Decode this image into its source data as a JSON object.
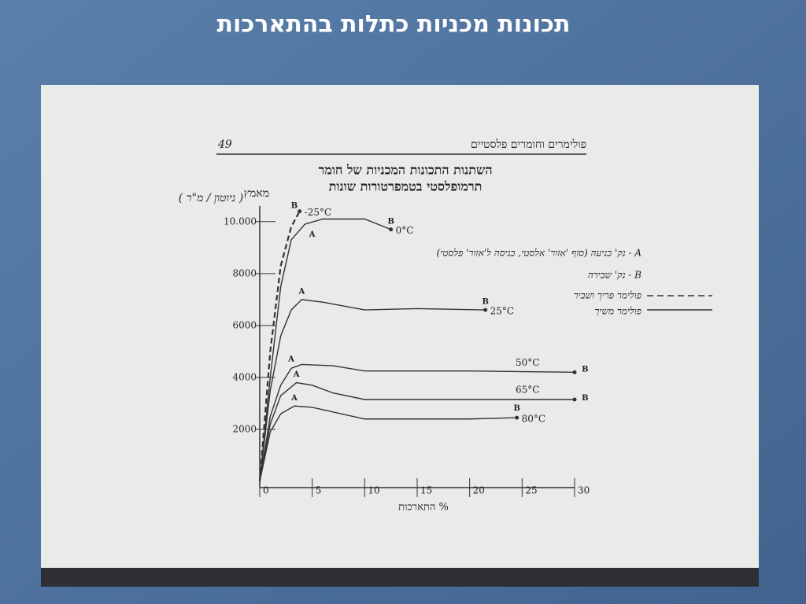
{
  "slide_title": "תכונות מכניות כתלות בהתארכות",
  "chart_data": {
    "type": "line",
    "page_number": "49",
    "book_title": "פולימרים וחומרים פלסטיים",
    "title": "השתנות התכונות המכניות של חומר",
    "subtitle": "תרמופלסטי בטמפרטורות שונות",
    "y_label": "מאמץ",
    "y_unit_note": "( ניוטון / מ\"ר )",
    "x_label": "% התארכות",
    "xlim": [
      0,
      30
    ],
    "xticks": [
      0,
      5,
      10,
      15,
      20,
      25,
      30
    ],
    "ylim": [
      0,
      10600
    ],
    "yticks": [
      2000,
      4000,
      6000,
      8000,
      {
        "value": 10000,
        "label": "10.000"
      }
    ],
    "series": [
      {
        "name": "-25°C",
        "color": "#333",
        "dash": true,
        "x": [
          0,
          1,
          2,
          3,
          3.8
        ],
        "values": [
          0,
          5000,
          8300,
          9800,
          10400
        ]
      },
      {
        "name": "0°C",
        "color": "#333",
        "dash": false,
        "x": [
          0,
          1,
          2,
          3,
          4.3,
          6,
          10,
          12.5
        ],
        "values": [
          0,
          4000,
          7500,
          9300,
          9900,
          10100,
          10100,
          9700
        ]
      },
      {
        "name": "25°C",
        "color": "#333",
        "dash": false,
        "x": [
          0,
          1,
          2,
          3,
          4,
          6,
          10,
          15,
          21.5
        ],
        "values": [
          0,
          3500,
          5600,
          6600,
          7000,
          6900,
          6600,
          6650,
          6600
        ]
      },
      {
        "name": "50°C",
        "color": "#333",
        "dash": false,
        "x": [
          0,
          1,
          2,
          3,
          4,
          7,
          10,
          20,
          30
        ],
        "values": [
          0,
          2500,
          3700,
          4350,
          4500,
          4450,
          4250,
          4250,
          4200
        ]
      },
      {
        "name": "65°C",
        "color": "#333",
        "dash": false,
        "x": [
          0,
          1,
          2,
          3.5,
          5,
          7,
          10,
          20,
          30
        ],
        "values": [
          0,
          2200,
          3300,
          3800,
          3700,
          3400,
          3150,
          3150,
          3150
        ]
      },
      {
        "name": "80°C",
        "color": "#333",
        "dash": false,
        "x": [
          0,
          1,
          2,
          3.3,
          5,
          10,
          20,
          24.5
        ],
        "values": [
          0,
          1900,
          2600,
          2900,
          2850,
          2400,
          2400,
          2450
        ]
      }
    ],
    "annotations": [
      {
        "text": "B",
        "x": 3.3,
        "y": 10600
      },
      {
        "text": "A",
        "x": 5,
        "y": 9500
      },
      {
        "text": "B",
        "x": 12.5,
        "y": 10000
      },
      {
        "text": "A",
        "x": 4,
        "y": 7300
      },
      {
        "text": "B",
        "x": 21.5,
        "y": 6900
      },
      {
        "text": "A",
        "x": 3,
        "y": 4700
      },
      {
        "text": "B",
        "x": 31,
        "y": 4300
      },
      {
        "text": "A",
        "x": 3.5,
        "y": 4100
      },
      {
        "text": "B",
        "x": 31,
        "y": 3200
      },
      {
        "text": "A",
        "x": 3.3,
        "y": 3200
      },
      {
        "text": "B",
        "x": 24.5,
        "y": 2800
      }
    ],
    "legend_notes": [
      "A - נק' כניעה (סוף 'אזור' אלסטי, כניסה ל'אזור' פלסטי)",
      "B - נק' שבירה",
      "פולימר פריך ושביר",
      "פולימר משיך"
    ]
  }
}
